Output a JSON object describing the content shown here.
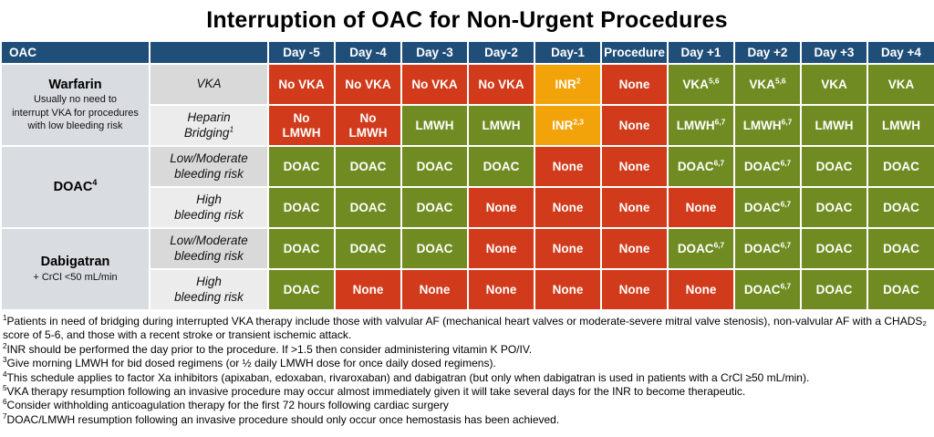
{
  "title": "Interruption of OAC for Non-Urgent Procedures",
  "colors": {
    "header_bg": "#1F4E79",
    "stop_red": "#D13A1B",
    "check_orange": "#F2A30A",
    "continue_green": "#6F8B21",
    "label_gray_dark": "#D9D9D9",
    "label_gray_light": "#ECECEC"
  },
  "table": {
    "header": [
      "OAC",
      "",
      "Day -5",
      "Day -4",
      "Day -3",
      "Day-2",
      "Day-1",
      "Procedure",
      "Day +1",
      "Day +2",
      "Day +3",
      "Day +4"
    ],
    "groups": [
      {
        "name": "Warfarin",
        "name_sup": "",
        "desc": "Usually no need to\ninterrupt VKA for procedures\nwith low bleeding risk",
        "rows": [
          {
            "label": "VKA",
            "label_sup": "",
            "cells": [
              {
                "t": "No VKA",
                "s": "",
                "c": "red"
              },
              {
                "t": "No VKA",
                "s": "",
                "c": "red"
              },
              {
                "t": "No VKA",
                "s": "",
                "c": "red"
              },
              {
                "t": "No VKA",
                "s": "",
                "c": "red"
              },
              {
                "t": "INR",
                "s": "2",
                "c": "orange"
              },
              {
                "t": "None",
                "s": "",
                "c": "red"
              },
              {
                "t": "VKA",
                "s": "5,6",
                "c": "green"
              },
              {
                "t": "VKA",
                "s": "5,6",
                "c": "green"
              },
              {
                "t": "VKA",
                "s": "",
                "c": "green"
              },
              {
                "t": "VKA",
                "s": "",
                "c": "green"
              }
            ]
          },
          {
            "label": "Heparin\nBridging",
            "label_sup": "1",
            "cells": [
              {
                "t": "No\nLMWH",
                "s": "",
                "c": "red"
              },
              {
                "t": "No\nLMWH",
                "s": "",
                "c": "red"
              },
              {
                "t": "LMWH",
                "s": "",
                "c": "green"
              },
              {
                "t": "LMWH",
                "s": "",
                "c": "green"
              },
              {
                "t": "INR",
                "s": "2,3",
                "c": "orange"
              },
              {
                "t": "None",
                "s": "",
                "c": "red"
              },
              {
                "t": "LMWH",
                "s": "6,7",
                "c": "green"
              },
              {
                "t": "LMWH",
                "s": "6,7",
                "c": "green"
              },
              {
                "t": "LMWH",
                "s": "",
                "c": "green"
              },
              {
                "t": "LMWH",
                "s": "",
                "c": "green"
              }
            ]
          }
        ]
      },
      {
        "name": "DOAC",
        "name_sup": "4",
        "desc": "",
        "rows": [
          {
            "label": "Low/Moderate\nbleeding risk",
            "label_sup": "",
            "cells": [
              {
                "t": "DOAC",
                "s": "",
                "c": "green"
              },
              {
                "t": "DOAC",
                "s": "",
                "c": "green"
              },
              {
                "t": "DOAC",
                "s": "",
                "c": "green"
              },
              {
                "t": "DOAC",
                "s": "",
                "c": "green"
              },
              {
                "t": "None",
                "s": "",
                "c": "red"
              },
              {
                "t": "None",
                "s": "",
                "c": "red"
              },
              {
                "t": "DOAC",
                "s": "6,7",
                "c": "green"
              },
              {
                "t": "DOAC",
                "s": "6,7",
                "c": "green"
              },
              {
                "t": "DOAC",
                "s": "",
                "c": "green"
              },
              {
                "t": "DOAC",
                "s": "",
                "c": "green"
              }
            ]
          },
          {
            "label": "High\nbleeding risk",
            "label_sup": "",
            "cells": [
              {
                "t": "DOAC",
                "s": "",
                "c": "green"
              },
              {
                "t": "DOAC",
                "s": "",
                "c": "green"
              },
              {
                "t": "DOAC",
                "s": "",
                "c": "green"
              },
              {
                "t": "None",
                "s": "",
                "c": "red"
              },
              {
                "t": "None",
                "s": "",
                "c": "red"
              },
              {
                "t": "None",
                "s": "",
                "c": "red"
              },
              {
                "t": "None",
                "s": "",
                "c": "red"
              },
              {
                "t": "DOAC",
                "s": "6,7",
                "c": "green"
              },
              {
                "t": "DOAC",
                "s": "",
                "c": "green"
              },
              {
                "t": "DOAC",
                "s": "",
                "c": "green"
              }
            ]
          }
        ]
      },
      {
        "name": "Dabigatran",
        "name_sup": "",
        "desc": "+ CrCl <50 mL/min",
        "rows": [
          {
            "label": "Low/Moderate\nbleeding risk",
            "label_sup": "",
            "cells": [
              {
                "t": "DOAC",
                "s": "",
                "c": "green"
              },
              {
                "t": "DOAC",
                "s": "",
                "c": "green"
              },
              {
                "t": "DOAC",
                "s": "",
                "c": "green"
              },
              {
                "t": "None",
                "s": "",
                "c": "red"
              },
              {
                "t": "None",
                "s": "",
                "c": "red"
              },
              {
                "t": "None",
                "s": "",
                "c": "red"
              },
              {
                "t": "DOAC",
                "s": "6,7",
                "c": "green"
              },
              {
                "t": "DOAC",
                "s": "6,7",
                "c": "green"
              },
              {
                "t": "DOAC",
                "s": "",
                "c": "green"
              },
              {
                "t": "DOAC",
                "s": "",
                "c": "green"
              }
            ]
          },
          {
            "label": "High\nbleeding risk",
            "label_sup": "",
            "cells": [
              {
                "t": "DOAC",
                "s": "",
                "c": "green"
              },
              {
                "t": "None",
                "s": "",
                "c": "red"
              },
              {
                "t": "None",
                "s": "",
                "c": "red"
              },
              {
                "t": "None",
                "s": "",
                "c": "red"
              },
              {
                "t": "None",
                "s": "",
                "c": "red"
              },
              {
                "t": "None",
                "s": "",
                "c": "red"
              },
              {
                "t": "None",
                "s": "",
                "c": "red"
              },
              {
                "t": "DOAC",
                "s": "6,7",
                "c": "green"
              },
              {
                "t": "DOAC",
                "s": "",
                "c": "green"
              },
              {
                "t": "DOAC",
                "s": "",
                "c": "green"
              }
            ]
          }
        ]
      }
    ]
  },
  "footnotes": [
    {
      "n": "1",
      "text": "Patients in need of bridging during interrupted VKA therapy include those with valvular AF (mechanical heart valves or moderate-severe mitral valve stenosis), non-valvular AF with a CHADS₂ score of 5-6, and those with a recent stroke or transient ischemic attack."
    },
    {
      "n": "2",
      "text": "INR should be performed the day prior to the procedure. If >1.5 then consider administering vitamin K PO/IV."
    },
    {
      "n": "3",
      "text": "Give morning LMWH for bid dosed regimens (or ½ daily LMWH dose for once daily dosed regimens)."
    },
    {
      "n": "4",
      "text": "This schedule applies to factor Xa inhibitors (apixaban, edoxaban, rivaroxaban) and dabigatran (but only when dabigatran is used in patients with a CrCl ≥50 mL/min)."
    },
    {
      "n": "5",
      "text": "VKA therapy resumption following an invasive procedure may occur almost immediately given it will take several days for the INR to become therapeutic."
    },
    {
      "n": "6",
      "text": "Consider withholding anticoagulation therapy for the first 72 hours following cardiac surgery"
    },
    {
      "n": "7",
      "text": "DOAC/LMWH resumption following an invasive procedure should only occur once hemostasis has been achieved."
    }
  ]
}
